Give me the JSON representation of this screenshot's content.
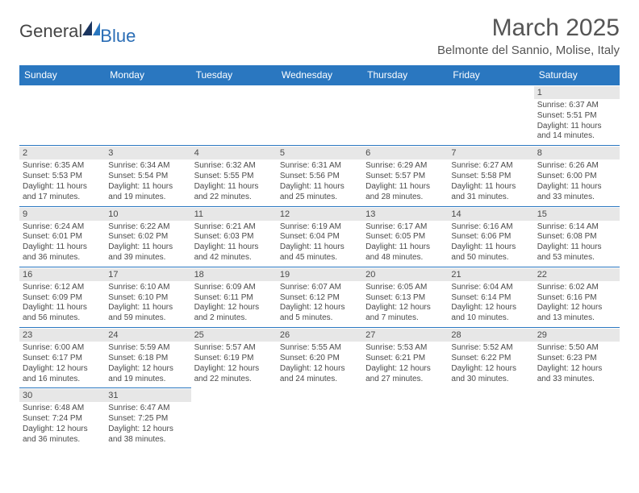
{
  "brand": {
    "general": "General",
    "blue": "Blue"
  },
  "title": "March 2025",
  "location": "Belmonte del Sannio, Molise, Italy",
  "colors": {
    "header_bg": "#2a77c0",
    "header_text": "#ffffff",
    "border": "#2a77c0",
    "daynum_bg": "#e7e7e7",
    "text": "#4a4a4a",
    "brand_blue": "#2a6db5"
  },
  "weekdays": [
    "Sunday",
    "Monday",
    "Tuesday",
    "Wednesday",
    "Thursday",
    "Friday",
    "Saturday"
  ],
  "weeks": [
    [
      null,
      null,
      null,
      null,
      null,
      null,
      {
        "n": "1",
        "sr": "Sunrise: 6:37 AM",
        "ss": "Sunset: 5:51 PM",
        "d1": "Daylight: 11 hours",
        "d2": "and 14 minutes."
      }
    ],
    [
      {
        "n": "2",
        "sr": "Sunrise: 6:35 AM",
        "ss": "Sunset: 5:53 PM",
        "d1": "Daylight: 11 hours",
        "d2": "and 17 minutes."
      },
      {
        "n": "3",
        "sr": "Sunrise: 6:34 AM",
        "ss": "Sunset: 5:54 PM",
        "d1": "Daylight: 11 hours",
        "d2": "and 19 minutes."
      },
      {
        "n": "4",
        "sr": "Sunrise: 6:32 AM",
        "ss": "Sunset: 5:55 PM",
        "d1": "Daylight: 11 hours",
        "d2": "and 22 minutes."
      },
      {
        "n": "5",
        "sr": "Sunrise: 6:31 AM",
        "ss": "Sunset: 5:56 PM",
        "d1": "Daylight: 11 hours",
        "d2": "and 25 minutes."
      },
      {
        "n": "6",
        "sr": "Sunrise: 6:29 AM",
        "ss": "Sunset: 5:57 PM",
        "d1": "Daylight: 11 hours",
        "d2": "and 28 minutes."
      },
      {
        "n": "7",
        "sr": "Sunrise: 6:27 AM",
        "ss": "Sunset: 5:58 PM",
        "d1": "Daylight: 11 hours",
        "d2": "and 31 minutes."
      },
      {
        "n": "8",
        "sr": "Sunrise: 6:26 AM",
        "ss": "Sunset: 6:00 PM",
        "d1": "Daylight: 11 hours",
        "d2": "and 33 minutes."
      }
    ],
    [
      {
        "n": "9",
        "sr": "Sunrise: 6:24 AM",
        "ss": "Sunset: 6:01 PM",
        "d1": "Daylight: 11 hours",
        "d2": "and 36 minutes."
      },
      {
        "n": "10",
        "sr": "Sunrise: 6:22 AM",
        "ss": "Sunset: 6:02 PM",
        "d1": "Daylight: 11 hours",
        "d2": "and 39 minutes."
      },
      {
        "n": "11",
        "sr": "Sunrise: 6:21 AM",
        "ss": "Sunset: 6:03 PM",
        "d1": "Daylight: 11 hours",
        "d2": "and 42 minutes."
      },
      {
        "n": "12",
        "sr": "Sunrise: 6:19 AM",
        "ss": "Sunset: 6:04 PM",
        "d1": "Daylight: 11 hours",
        "d2": "and 45 minutes."
      },
      {
        "n": "13",
        "sr": "Sunrise: 6:17 AM",
        "ss": "Sunset: 6:05 PM",
        "d1": "Daylight: 11 hours",
        "d2": "and 48 minutes."
      },
      {
        "n": "14",
        "sr": "Sunrise: 6:16 AM",
        "ss": "Sunset: 6:06 PM",
        "d1": "Daylight: 11 hours",
        "d2": "and 50 minutes."
      },
      {
        "n": "15",
        "sr": "Sunrise: 6:14 AM",
        "ss": "Sunset: 6:08 PM",
        "d1": "Daylight: 11 hours",
        "d2": "and 53 minutes."
      }
    ],
    [
      {
        "n": "16",
        "sr": "Sunrise: 6:12 AM",
        "ss": "Sunset: 6:09 PM",
        "d1": "Daylight: 11 hours",
        "d2": "and 56 minutes."
      },
      {
        "n": "17",
        "sr": "Sunrise: 6:10 AM",
        "ss": "Sunset: 6:10 PM",
        "d1": "Daylight: 11 hours",
        "d2": "and 59 minutes."
      },
      {
        "n": "18",
        "sr": "Sunrise: 6:09 AM",
        "ss": "Sunset: 6:11 PM",
        "d1": "Daylight: 12 hours",
        "d2": "and 2 minutes."
      },
      {
        "n": "19",
        "sr": "Sunrise: 6:07 AM",
        "ss": "Sunset: 6:12 PM",
        "d1": "Daylight: 12 hours",
        "d2": "and 5 minutes."
      },
      {
        "n": "20",
        "sr": "Sunrise: 6:05 AM",
        "ss": "Sunset: 6:13 PM",
        "d1": "Daylight: 12 hours",
        "d2": "and 7 minutes."
      },
      {
        "n": "21",
        "sr": "Sunrise: 6:04 AM",
        "ss": "Sunset: 6:14 PM",
        "d1": "Daylight: 12 hours",
        "d2": "and 10 minutes."
      },
      {
        "n": "22",
        "sr": "Sunrise: 6:02 AM",
        "ss": "Sunset: 6:16 PM",
        "d1": "Daylight: 12 hours",
        "d2": "and 13 minutes."
      }
    ],
    [
      {
        "n": "23",
        "sr": "Sunrise: 6:00 AM",
        "ss": "Sunset: 6:17 PM",
        "d1": "Daylight: 12 hours",
        "d2": "and 16 minutes."
      },
      {
        "n": "24",
        "sr": "Sunrise: 5:59 AM",
        "ss": "Sunset: 6:18 PM",
        "d1": "Daylight: 12 hours",
        "d2": "and 19 minutes."
      },
      {
        "n": "25",
        "sr": "Sunrise: 5:57 AM",
        "ss": "Sunset: 6:19 PM",
        "d1": "Daylight: 12 hours",
        "d2": "and 22 minutes."
      },
      {
        "n": "26",
        "sr": "Sunrise: 5:55 AM",
        "ss": "Sunset: 6:20 PM",
        "d1": "Daylight: 12 hours",
        "d2": "and 24 minutes."
      },
      {
        "n": "27",
        "sr": "Sunrise: 5:53 AM",
        "ss": "Sunset: 6:21 PM",
        "d1": "Daylight: 12 hours",
        "d2": "and 27 minutes."
      },
      {
        "n": "28",
        "sr": "Sunrise: 5:52 AM",
        "ss": "Sunset: 6:22 PM",
        "d1": "Daylight: 12 hours",
        "d2": "and 30 minutes."
      },
      {
        "n": "29",
        "sr": "Sunrise: 5:50 AM",
        "ss": "Sunset: 6:23 PM",
        "d1": "Daylight: 12 hours",
        "d2": "and 33 minutes."
      }
    ],
    [
      {
        "n": "30",
        "sr": "Sunrise: 6:48 AM",
        "ss": "Sunset: 7:24 PM",
        "d1": "Daylight: 12 hours",
        "d2": "and 36 minutes."
      },
      {
        "n": "31",
        "sr": "Sunrise: 6:47 AM",
        "ss": "Sunset: 7:25 PM",
        "d1": "Daylight: 12 hours",
        "d2": "and 38 minutes."
      },
      null,
      null,
      null,
      null,
      null
    ]
  ]
}
